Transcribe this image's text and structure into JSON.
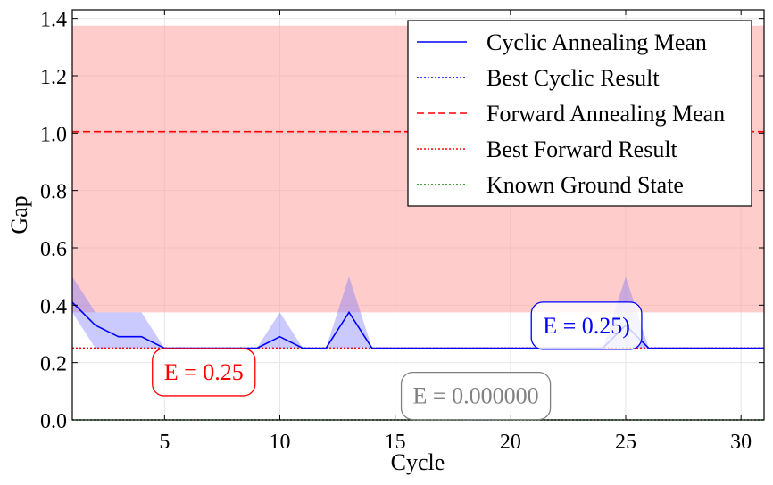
{
  "chart_data": {
    "type": "line",
    "xlabel": "Cycle",
    "ylabel": "Gap",
    "xlim": [
      1,
      31
    ],
    "ylim": [
      0,
      1.43
    ],
    "xticks": [
      5,
      10,
      15,
      20,
      25,
      30
    ],
    "yticks": [
      0.0,
      0.2,
      0.4,
      0.6,
      0.8,
      1.0,
      1.2,
      1.4
    ],
    "xtick_labels": [
      "5",
      "10",
      "15",
      "20",
      "25",
      "30"
    ],
    "ytick_labels": [
      "0.0",
      "0.2",
      "0.4",
      "0.6",
      "0.8",
      "1.0",
      "1.2",
      "1.4"
    ],
    "grid": true,
    "legend_placement": "top-right",
    "series": [
      {
        "name": "Cyclic Annealing Mean",
        "color": "#0000ff",
        "style": "solid",
        "x": [
          1,
          2,
          3,
          4,
          5,
          6,
          7,
          8,
          9,
          10,
          11,
          12,
          13,
          14,
          15,
          16,
          17,
          18,
          19,
          20,
          21,
          22,
          23,
          24,
          25,
          26,
          27,
          28,
          29,
          30,
          31
        ],
        "values": [
          0.41,
          0.33,
          0.29,
          0.29,
          0.25,
          0.25,
          0.25,
          0.25,
          0.25,
          0.29,
          0.25,
          0.25,
          0.375,
          0.25,
          0.25,
          0.25,
          0.25,
          0.25,
          0.25,
          0.25,
          0.25,
          0.25,
          0.25,
          0.25,
          0.33,
          0.25,
          0.25,
          0.25,
          0.25,
          0.25,
          0.25
        ],
        "band_lower": [
          0.375,
          0.25,
          0.25,
          0.25,
          0.25,
          0.25,
          0.25,
          0.25,
          0.25,
          0.25,
          0.25,
          0.25,
          0.25,
          0.25,
          0.25,
          0.25,
          0.25,
          0.25,
          0.25,
          0.25,
          0.25,
          0.25,
          0.25,
          0.25,
          0.25,
          0.25,
          0.25,
          0.25,
          0.25,
          0.25,
          0.25
        ],
        "band_upper": [
          0.5,
          0.375,
          0.375,
          0.375,
          0.25,
          0.25,
          0.25,
          0.25,
          0.25,
          0.375,
          0.25,
          0.25,
          0.5,
          0.25,
          0.25,
          0.25,
          0.25,
          0.25,
          0.25,
          0.25,
          0.25,
          0.25,
          0.25,
          0.25,
          0.5,
          0.25,
          0.25,
          0.25,
          0.25,
          0.25,
          0.25
        ],
        "band_color": "#6666ff"
      },
      {
        "name": "Best Cyclic Result",
        "color": "#0000ff",
        "style": "dotted",
        "value": 0.25
      },
      {
        "name": "Forward Annealing Mean",
        "color": "#ff0000",
        "style": "dashed",
        "value": 1.005,
        "band_lower": 0.375,
        "band_upper": 1.375,
        "band_color": "#ff9999"
      },
      {
        "name": "Best Forward Result",
        "color": "#ff0000",
        "style": "dotted",
        "value": 0.25
      },
      {
        "name": "Known Ground State",
        "color": "#008000",
        "style": "dotted",
        "value": 0.0
      }
    ],
    "annotations": [
      {
        "text": "E = 0.25",
        "color": "#ff0000",
        "border": "#ff0000",
        "x": 6.7,
        "y": 0.168
      },
      {
        "text": "E = 0.25)",
        "color": "#0000ff",
        "border": "#0000ff",
        "x": 23.3,
        "y": 0.33
      },
      {
        "text": "E = 0.000000",
        "color": "#808080",
        "border": "#808080",
        "x": 18.5,
        "y": 0.085
      }
    ]
  }
}
